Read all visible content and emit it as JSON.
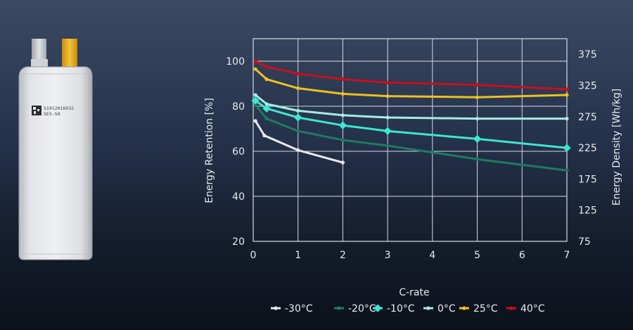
{
  "battery": {
    "label_line1": "S1912016032",
    "label_line2": "SES-SH",
    "tab_colors": [
      "#c9ccd0",
      "#e2ae1e"
    ]
  },
  "chart_data": {
    "type": "line",
    "title": "",
    "xlabel": "C-rate",
    "ylabel": "Energy Retention [%]",
    "y2label": "Energy Density [Wh/kg]",
    "xlim": [
      0,
      7
    ],
    "ylim": [
      20,
      110
    ],
    "y2lim": [
      75,
      400
    ],
    "xticks": [
      0,
      1,
      2,
      3,
      4,
      5,
      6,
      7
    ],
    "yticks": [
      20,
      40,
      60,
      80,
      100
    ],
    "y2ticks": [
      75,
      125,
      175,
      225,
      275,
      325,
      375
    ],
    "grid": true,
    "legend_position": "bottom",
    "series": [
      {
        "name": "-30°C",
        "color": "#e8e8f0",
        "x": [
          0.05,
          0.25,
          1,
          2
        ],
        "y": [
          73.5,
          67,
          60.5,
          55
        ]
      },
      {
        "name": "-20°C",
        "color": "#1f7a62",
        "x": [
          0.05,
          0.3,
          1,
          2,
          3,
          4,
          5,
          6,
          7
        ],
        "y": [
          80.5,
          74.5,
          69,
          65,
          62.5,
          59.5,
          56.5,
          54,
          51.5
        ]
      },
      {
        "name": "-10°C",
        "color": "#3de6cf",
        "x": [
          0.05,
          0.3,
          1,
          2,
          3,
          5,
          7
        ],
        "y": [
          82.5,
          79,
          75,
          71.5,
          69,
          65.5,
          61.5
        ]
      },
      {
        "name": "0°C",
        "color": "#a6ece6",
        "x": [
          0.05,
          0.3,
          1,
          2,
          3,
          5,
          7
        ],
        "y": [
          85,
          81,
          78,
          76,
          75,
          74.5,
          74.5
        ]
      },
      {
        "name": "25°C",
        "color": "#f0c020",
        "x": [
          0.05,
          0.3,
          1,
          2,
          3,
          5,
          7
        ],
        "y": [
          96.5,
          92,
          88,
          85.5,
          84.5,
          84,
          85
        ]
      },
      {
        "name": "40°C",
        "color": "#c8101c",
        "x": [
          0.05,
          0.3,
          1,
          2,
          3,
          5,
          7
        ],
        "y": [
          100,
          97.5,
          94.5,
          92,
          90.5,
          89.5,
          87.5
        ]
      }
    ]
  }
}
